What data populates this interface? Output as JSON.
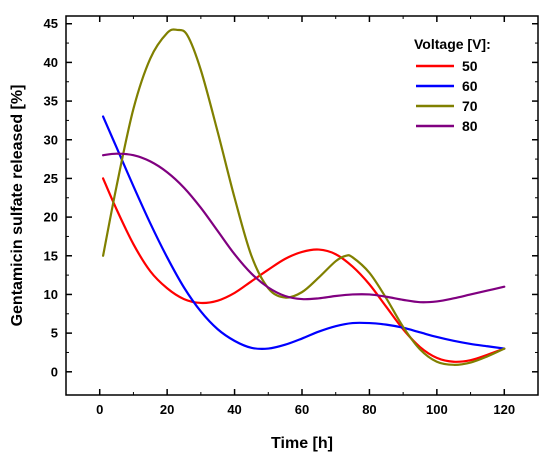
{
  "chart_data": {
    "type": "line",
    "title": "",
    "xlabel": "Time [h]",
    "ylabel": "Gentamicin sulfate released [%]",
    "xlim": [
      -10,
      130
    ],
    "ylim": [
      -3,
      46
    ],
    "x_ticks": [
      0,
      20,
      40,
      60,
      80,
      100,
      120
    ],
    "y_ticks": [
      0,
      5,
      10,
      15,
      20,
      25,
      30,
      35,
      40,
      45
    ],
    "x_tick_labels": [
      "0",
      "20",
      "40",
      "60",
      "80",
      "100",
      "120"
    ],
    "y_tick_labels": [
      "0",
      "5",
      "10",
      "15",
      "20",
      "25",
      "30",
      "35",
      "40",
      "45"
    ],
    "grid": false,
    "legend": {
      "title": "Voltage [V]:",
      "position": "top-right"
    },
    "series": [
      {
        "name": "50",
        "color": "#ff0000",
        "points": [
          [
            1,
            25
          ],
          [
            5,
            21
          ],
          [
            10,
            16.5
          ],
          [
            15,
            13
          ],
          [
            20,
            10.8
          ],
          [
            25,
            9.4
          ],
          [
            30,
            8.9
          ],
          [
            35,
            9.2
          ],
          [
            40,
            10.2
          ],
          [
            45,
            11.7
          ],
          [
            50,
            13.2
          ],
          [
            55,
            14.6
          ],
          [
            60,
            15.5
          ],
          [
            65,
            15.8
          ],
          [
            70,
            15.2
          ],
          [
            75,
            13.6
          ],
          [
            80,
            11.3
          ],
          [
            85,
            8.4
          ],
          [
            90,
            5.5
          ],
          [
            95,
            3.2
          ],
          [
            100,
            1.8
          ],
          [
            105,
            1.3
          ],
          [
            110,
            1.5
          ],
          [
            115,
            2.2
          ],
          [
            120,
            3
          ]
        ]
      },
      {
        "name": "60",
        "color": "#0000ff",
        "points": [
          [
            1,
            33
          ],
          [
            5,
            29
          ],
          [
            10,
            24
          ],
          [
            15,
            19.2
          ],
          [
            20,
            14.8
          ],
          [
            25,
            10.9
          ],
          [
            30,
            7.8
          ],
          [
            35,
            5.5
          ],
          [
            40,
            4
          ],
          [
            45,
            3.1
          ],
          [
            50,
            3
          ],
          [
            55,
            3.5
          ],
          [
            60,
            4.3
          ],
          [
            65,
            5.2
          ],
          [
            70,
            5.9
          ],
          [
            75,
            6.3
          ],
          [
            80,
            6.3
          ],
          [
            85,
            6.1
          ],
          [
            90,
            5.7
          ],
          [
            95,
            5.1
          ],
          [
            100,
            4.5
          ],
          [
            105,
            4
          ],
          [
            110,
            3.6
          ],
          [
            115,
            3.3
          ],
          [
            120,
            3
          ]
        ]
      },
      {
        "name": "70",
        "color": "#808000",
        "points": [
          [
            1,
            15
          ],
          [
            5,
            24
          ],
          [
            10,
            34
          ],
          [
            15,
            40.5
          ],
          [
            20,
            43.8
          ],
          [
            23,
            44.2
          ],
          [
            26,
            43.5
          ],
          [
            30,
            39
          ],
          [
            35,
            31
          ],
          [
            40,
            22.5
          ],
          [
            45,
            15
          ],
          [
            50,
            10.8
          ],
          [
            55,
            9.6
          ],
          [
            60,
            10.3
          ],
          [
            65,
            12.2
          ],
          [
            70,
            14.3
          ],
          [
            73,
            15
          ],
          [
            75,
            14.8
          ],
          [
            80,
            12.8
          ],
          [
            85,
            9.5
          ],
          [
            90,
            5.8
          ],
          [
            95,
            2.9
          ],
          [
            100,
            1.3
          ],
          [
            105,
            0.9
          ],
          [
            110,
            1.2
          ],
          [
            115,
            2
          ],
          [
            120,
            3
          ]
        ]
      },
      {
        "name": "80",
        "color": "#800080",
        "points": [
          [
            1,
            28
          ],
          [
            5,
            28.2
          ],
          [
            10,
            28
          ],
          [
            15,
            27.2
          ],
          [
            20,
            25.8
          ],
          [
            25,
            23.8
          ],
          [
            30,
            21.2
          ],
          [
            35,
            18.2
          ],
          [
            40,
            15.2
          ],
          [
            45,
            12.7
          ],
          [
            50,
            10.9
          ],
          [
            55,
            9.8
          ],
          [
            60,
            9.4
          ],
          [
            65,
            9.5
          ],
          [
            70,
            9.8
          ],
          [
            75,
            10
          ],
          [
            80,
            10
          ],
          [
            85,
            9.7
          ],
          [
            90,
            9.3
          ],
          [
            95,
            9
          ],
          [
            100,
            9.1
          ],
          [
            105,
            9.5
          ],
          [
            110,
            10
          ],
          [
            115,
            10.5
          ],
          [
            120,
            11
          ]
        ]
      }
    ]
  }
}
